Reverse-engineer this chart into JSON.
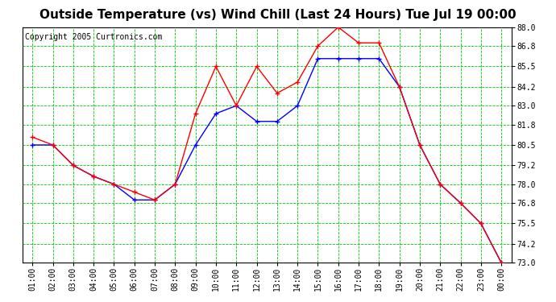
{
  "title": "Outside Temperature (vs) Wind Chill (Last 24 Hours) Tue Jul 19 00:00",
  "copyright": "Copyright 2005 Curtronics.com",
  "x_labels": [
    "01:00",
    "02:00",
    "03:00",
    "04:00",
    "05:00",
    "06:00",
    "07:00",
    "08:00",
    "09:00",
    "10:00",
    "11:00",
    "12:00",
    "13:00",
    "14:00",
    "15:00",
    "16:00",
    "17:00",
    "18:00",
    "19:00",
    "20:00",
    "21:00",
    "22:00",
    "23:00",
    "00:00"
  ],
  "blue_data": [
    80.5,
    80.5,
    79.2,
    78.5,
    78.0,
    77.0,
    77.0,
    78.0,
    80.5,
    82.5,
    83.0,
    82.0,
    82.0,
    83.0,
    86.0,
    86.0,
    86.0,
    86.0,
    84.2,
    80.5,
    78.0,
    76.8,
    75.5,
    73.0
  ],
  "red_data": [
    81.0,
    80.5,
    79.2,
    78.5,
    78.0,
    77.5,
    77.0,
    78.0,
    82.5,
    85.5,
    83.0,
    85.5,
    83.8,
    84.5,
    86.8,
    88.0,
    87.0,
    87.0,
    84.2,
    80.5,
    78.0,
    76.8,
    75.5,
    73.0
  ],
  "ylim_min": 73.0,
  "ylim_max": 88.0,
  "yticks": [
    73.0,
    74.2,
    75.5,
    76.8,
    78.0,
    79.2,
    80.5,
    81.8,
    83.0,
    84.2,
    85.5,
    86.8,
    88.0
  ],
  "bg_color": "#ffffff",
  "grid_color": "#00cc00",
  "blue_color": "#0000ff",
  "red_color": "#ff0000",
  "title_fontsize": 11,
  "tick_fontsize": 7,
  "copyright_fontsize": 7
}
